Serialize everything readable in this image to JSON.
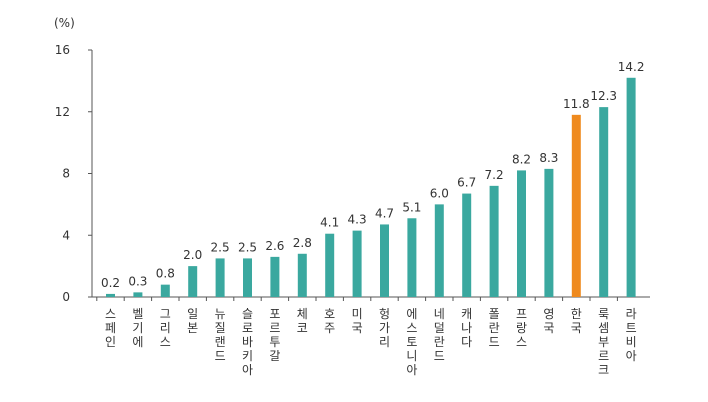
{
  "chart_data": {
    "type": "bar",
    "unit_label": "(%)",
    "yticks": [
      "16",
      "12",
      "8",
      "4",
      "0"
    ],
    "ylim": [
      0,
      16
    ],
    "grid": false,
    "categories": [
      "스페인",
      "벨기에",
      "그리스",
      "일본",
      "뉴질랜드",
      "슬로바키아",
      "포르투갈",
      "체코",
      "호주",
      "미국",
      "헝가리",
      "에스토니아",
      "네덜란드",
      "캐나다",
      "폴란드",
      "프랑스",
      "영국",
      "한국",
      "룩셈부르크",
      "라트비아"
    ],
    "values": [
      0.2,
      0.3,
      0.8,
      2.0,
      2.5,
      2.5,
      2.6,
      2.8,
      4.1,
      4.3,
      4.7,
      5.1,
      6.0,
      6.7,
      7.2,
      8.2,
      8.3,
      11.8,
      12.3,
      14.2
    ],
    "value_labels": [
      "0.2",
      "0.3",
      "0.8",
      "2.0",
      "2.5",
      "2.5",
      "2.6",
      "2.8",
      "4.1",
      "4.3",
      "4.7",
      "5.1",
      "6.0",
      "6.7",
      "7.2",
      "8.2",
      "8.3",
      "11.8",
      "12.3",
      "14.2"
    ],
    "colors": {
      "default": "#3aa89f",
      "highlight": "#ef8a1e",
      "axis": "#555555"
    },
    "highlight_index": 17
  }
}
